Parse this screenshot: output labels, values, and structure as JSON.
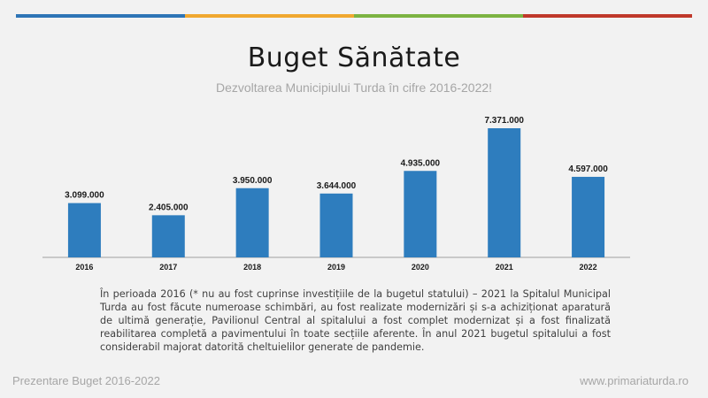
{
  "slide": {
    "title": "Buget Sănătate",
    "subtitle": "Dezvoltarea Municipiului Turda în cifre 2016-2022!",
    "description": "În perioada 2016 (* nu au fost cuprinse investițiile de la bugetul statului) – 2021 la Spitalul Municipal Turda au fost făcute numeroase schimbări, au fost realizate modernizări și s-a achiziționat aparatură de ultimă generație, Pavilionul Central al spitalului a fost complet modernizat și a fost finalizată reabilitarea completă a pavimentului în toate secțiile aferente. În anul 2021 bugetul spitalului a fost considerabil majorat datorită cheltuielilor generate de pandemie.",
    "footer_left": "Prezentare Buget 2016-2022",
    "footer_right": "www.primariaturda.ro",
    "top_bar_colors": [
      "#2e75b6",
      "#f0a830",
      "#7cb342",
      "#c0392b"
    ]
  },
  "chart_data": {
    "type": "bar",
    "categories": [
      "2016",
      "2017",
      "2018",
      "2019",
      "2020",
      "2021",
      "2022"
    ],
    "values": [
      3099000,
      2405000,
      3950000,
      3644000,
      4935000,
      7371000,
      4597000
    ],
    "value_labels": [
      "3.099.000",
      "2.405.000",
      "3.950.000",
      "3.644.000",
      "4.935.000",
      "7.371.000",
      "4.597.000"
    ],
    "ylim": [
      0,
      7500000
    ],
    "grid": false,
    "bar_color": "#2e7dbe"
  }
}
